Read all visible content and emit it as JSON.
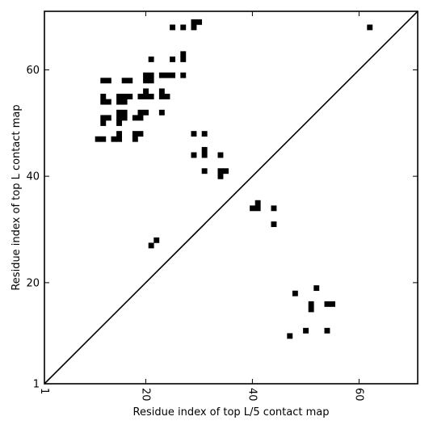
{
  "chart_data": {
    "type": "scatter",
    "title": "",
    "xlabel": "Residue index of top L/5 contact map",
    "ylabel": "Residue index of top L contact map",
    "xlim": [
      1,
      71
    ],
    "ylim": [
      1,
      71
    ],
    "xticks": [
      1,
      20,
      40,
      60
    ],
    "yticks": [
      1,
      20,
      40,
      60
    ],
    "grid": false,
    "diagonal_line": true,
    "marker": "square",
    "color": "#000000",
    "series": [
      {
        "points": [
          [
            25,
            68
          ],
          [
            27,
            68
          ],
          [
            29,
            68
          ],
          [
            29,
            69
          ],
          [
            30,
            69
          ],
          [
            27,
            62
          ],
          [
            27,
            63
          ],
          [
            25,
            62
          ],
          [
            21,
            62
          ],
          [
            62,
            68
          ],
          [
            12,
            58
          ],
          [
            13,
            58
          ],
          [
            16,
            58
          ],
          [
            17,
            58
          ],
          [
            20,
            58
          ],
          [
            20,
            59
          ],
          [
            21,
            58
          ],
          [
            21,
            59
          ],
          [
            23,
            59
          ],
          [
            24,
            59
          ],
          [
            25,
            59
          ],
          [
            27,
            59
          ],
          [
            20,
            56
          ],
          [
            23,
            56
          ],
          [
            12,
            54
          ],
          [
            12,
            55
          ],
          [
            13,
            54
          ],
          [
            15,
            54
          ],
          [
            15,
            55
          ],
          [
            16,
            54
          ],
          [
            16,
            55
          ],
          [
            17,
            55
          ],
          [
            19,
            55
          ],
          [
            20,
            55
          ],
          [
            21,
            55
          ],
          [
            23,
            55
          ],
          [
            24,
            55
          ],
          [
            15,
            52
          ],
          [
            16,
            52
          ],
          [
            15,
            51
          ],
          [
            16,
            51
          ],
          [
            19,
            52
          ],
          [
            20,
            52
          ],
          [
            23,
            52
          ],
          [
            12,
            51
          ],
          [
            13,
            51
          ],
          [
            12,
            50
          ],
          [
            15,
            50
          ],
          [
            18,
            51
          ],
          [
            19,
            51
          ],
          [
            11,
            47
          ],
          [
            12,
            47
          ],
          [
            14,
            47
          ],
          [
            15,
            47
          ],
          [
            15,
            48
          ],
          [
            18,
            48
          ],
          [
            18,
            47
          ],
          [
            19,
            48
          ],
          [
            29,
            48
          ],
          [
            31,
            48
          ],
          [
            29,
            44
          ],
          [
            31,
            44
          ],
          [
            31,
            45
          ],
          [
            34,
            44
          ],
          [
            31,
            41
          ],
          [
            34,
            41
          ],
          [
            34,
            40
          ],
          [
            35,
            41
          ],
          [
            21,
            27
          ],
          [
            22,
            28
          ],
          [
            40,
            34
          ],
          [
            41,
            34
          ],
          [
            41,
            35
          ],
          [
            44,
            34
          ],
          [
            44,
            31
          ],
          [
            48,
            18
          ],
          [
            52,
            19
          ],
          [
            51,
            16
          ],
          [
            51,
            15
          ],
          [
            54,
            16
          ],
          [
            55,
            16
          ],
          [
            50,
            11
          ],
          [
            54,
            11
          ],
          [
            47,
            10
          ]
        ]
      }
    ]
  }
}
